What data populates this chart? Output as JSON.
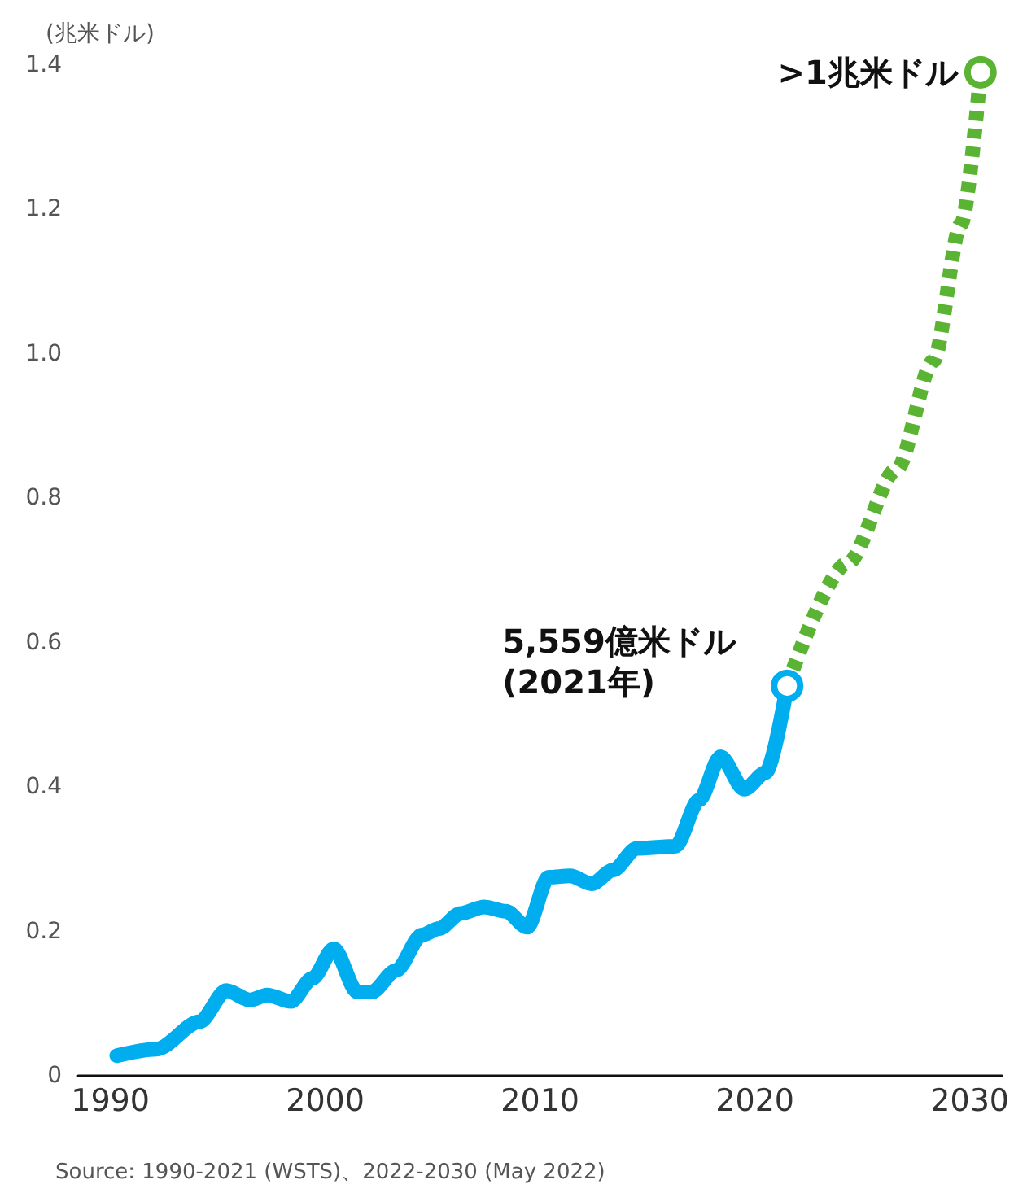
{
  "chart_data": {
    "type": "line",
    "ylabel": "(兆米ドル)",
    "xlim": [
      1988.5,
      2031.5
    ],
    "xticks": [
      1990,
      2000,
      2010,
      2020,
      2030
    ],
    "ylim": [
      0,
      1.4
    ],
    "yticks": [
      0,
      0.2,
      0.4,
      0.6,
      0.8,
      {
        "value": 1,
        "label": "1.0"
      },
      1.2,
      1.4
    ],
    "series": [
      {
        "color": "#00aeef",
        "line_style": "solid",
        "x": [
          1990.3,
          1992.15,
          1994.15,
          1995.4,
          1996.5,
          1997.3,
          1998.4,
          1999.4,
          2000.4,
          2001.5,
          2002.15,
          2003.3,
          2004.5,
          2005.3,
          2006.3,
          2007.4,
          2008.4,
          2009.4,
          2010.4,
          2011.4,
          2012.4,
          2013.4,
          2014.5,
          2016.3,
          2017.4,
          2018.4,
          2019.5,
          2020.5,
          2021.5
        ],
        "values": [
          0.028,
          0.037,
          0.075,
          0.118,
          0.105,
          0.112,
          0.103,
          0.135,
          0.176,
          0.116,
          0.116,
          0.146,
          0.195,
          0.204,
          0.225,
          0.234,
          0.228,
          0.206,
          0.275,
          0.277,
          0.266,
          0.285,
          0.315,
          0.318,
          0.382,
          0.442,
          0.397,
          0.42,
          0.54
        ]
      },
      {
        "color": "#5ab332",
        "line_style": "dashed",
        "x": [
          2021.5,
          2024.3,
          2026.6,
          2028.3,
          2029.6,
          2030.5
        ],
        "values": [
          0.54,
          0.71,
          0.84,
          0.99,
          1.18,
          1.39
        ]
      }
    ],
    "annotations": [
      {
        "text": "5,559億米ドル\n(2021年)",
        "x": 2021.5,
        "y": 0.54
      },
      {
        "text": ">1兆米ドル",
        "x": 2030.5,
        "y": 1.39
      },
      "Source: 1990-2021 (WSTS)、2022-2030 (May 2022)"
    ]
  }
}
